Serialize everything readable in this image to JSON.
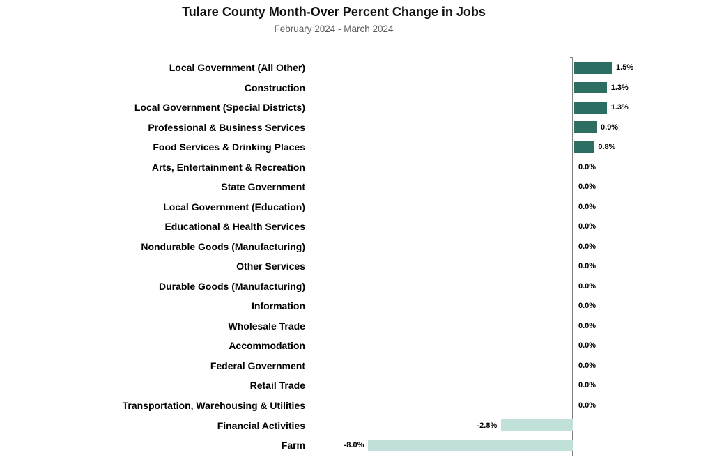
{
  "header": {
    "title": "Tulare County Month-Over Percent Change in Jobs",
    "subtitle": "February 2024 - March 2024"
  },
  "chart_data": {
    "type": "bar",
    "orientation": "horizontal",
    "title": "Tulare County Month-Over Percent Change in Jobs",
    "subtitle": "February 2024 - March 2024",
    "xlabel": "",
    "ylabel": "",
    "xlim": [
      -8.5,
      2.5
    ],
    "grid": false,
    "legend": false,
    "positive_color": "#2e6e62",
    "negative_color": "#c1e0d9",
    "axis_color": "#808080",
    "categories": [
      "Local Government (All Other)",
      "Construction",
      "Local Government (Special Districts)",
      "Professional & Business Services",
      "Food Services & Drinking Places",
      "Arts, Entertainment & Recreation",
      "State Government",
      "Local Government (Education)",
      "Educational & Health Services",
      "Nondurable Goods (Manufacturing)",
      "Other Services",
      "Durable Goods (Manufacturing)",
      "Information",
      "Wholesale Trade",
      "Accommodation",
      "Federal Government",
      "Retail Trade",
      "Transportation, Warehousing & Utilities",
      "Financial Activities",
      "Farm"
    ],
    "values": [
      1.5,
      1.3,
      1.3,
      0.9,
      0.8,
      0.0,
      0.0,
      0.0,
      0.0,
      0.0,
      0.0,
      0.0,
      0.0,
      0.0,
      0.0,
      0.0,
      0.0,
      0.0,
      -2.8,
      -8.0
    ],
    "labels": [
      "1.5%",
      "1.3%",
      "1.3%",
      "0.9%",
      "0.8%",
      "0.0%",
      "0.0%",
      "0.0%",
      "0.0%",
      "0.0%",
      "0.0%",
      "0.0%",
      "0.0%",
      "0.0%",
      "0.0%",
      "0.0%",
      "0.0%",
      "0.0%",
      "-2.8%",
      "-8.0%"
    ]
  }
}
